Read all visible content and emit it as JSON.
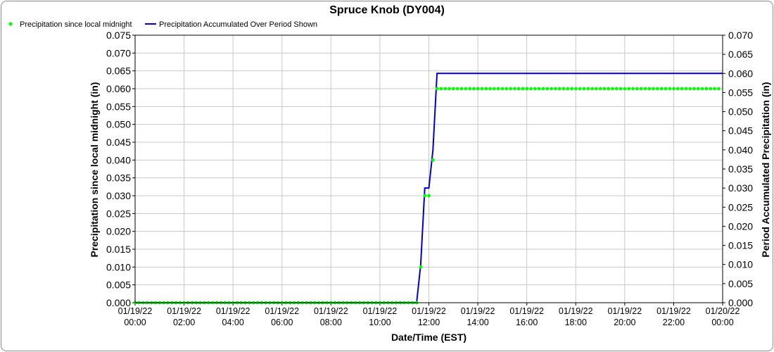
{
  "chart_data": {
    "type": "line",
    "title": "Spruce Knob (DY004)",
    "xlabel": "Date/Time (EST)",
    "ylabel_left": "Precipitation since local midnight (in)",
    "ylabel_right": "Period Accumulated Precipitation (in)",
    "ylim_left": [
      0,
      0.075
    ],
    "ylim_right": [
      0,
      0.07
    ],
    "yticks_left": [
      "0.000",
      "0.005",
      "0.010",
      "0.015",
      "0.020",
      "0.025",
      "0.030",
      "0.035",
      "0.040",
      "0.045",
      "0.050",
      "0.055",
      "0.060",
      "0.065",
      "0.070",
      "0.075"
    ],
    "yticks_right": [
      "0.000",
      "0.005",
      "0.010",
      "0.015",
      "0.020",
      "0.025",
      "0.030",
      "0.035",
      "0.040",
      "0.045",
      "0.050",
      "0.055",
      "0.060",
      "0.065",
      "0.070"
    ],
    "xticks": [
      {
        "date": "01/19/22",
        "time": "00:00"
      },
      {
        "date": "01/19/22",
        "time": "02:00"
      },
      {
        "date": "01/19/22",
        "time": "04:00"
      },
      {
        "date": "01/19/22",
        "time": "06:00"
      },
      {
        "date": "01/19/22",
        "time": "08:00"
      },
      {
        "date": "01/19/22",
        "time": "10:00"
      },
      {
        "date": "01/19/22",
        "time": "12:00"
      },
      {
        "date": "01/19/22",
        "time": "14:00"
      },
      {
        "date": "01/19/22",
        "time": "16:00"
      },
      {
        "date": "01/19/22",
        "time": "18:00"
      },
      {
        "date": "01/19/22",
        "time": "20:00"
      },
      {
        "date": "01/19/22",
        "time": "22:00"
      },
      {
        "date": "01/20/22",
        "time": "00:00"
      }
    ],
    "xlim_hours": [
      0,
      24
    ],
    "grid": true,
    "legend_position": "top-left",
    "series": [
      {
        "name": "Precipitation since local midnight",
        "axis": "left",
        "style": "points",
        "color": "#00ff00",
        "interval_hours": 0.1667,
        "points": [
          {
            "x_hours": 0.0,
            "y": 0.0
          },
          {
            "x_hours": 11.5,
            "y": 0.0
          },
          {
            "x_hours": 11.667,
            "y": 0.01
          },
          {
            "x_hours": 11.833,
            "y": 0.03
          },
          {
            "x_hours": 12.0,
            "y": 0.03
          },
          {
            "x_hours": 12.167,
            "y": 0.04
          },
          {
            "x_hours": 12.333,
            "y": 0.06
          },
          {
            "x_hours": 24.0,
            "y": 0.06
          }
        ]
      },
      {
        "name": "Precipitation Accumulated Over Period Shown",
        "axis": "right",
        "style": "line",
        "color": "#0000cc",
        "points": [
          {
            "x_hours": 0.0,
            "y": 0.0
          },
          {
            "x_hours": 11.5,
            "y": 0.0
          },
          {
            "x_hours": 11.667,
            "y": 0.01
          },
          {
            "x_hours": 11.833,
            "y": 0.03
          },
          {
            "x_hours": 12.0,
            "y": 0.03
          },
          {
            "x_hours": 12.167,
            "y": 0.04
          },
          {
            "x_hours": 12.333,
            "y": 0.06
          },
          {
            "x_hours": 24.0,
            "y": 0.06
          }
        ]
      }
    ]
  }
}
